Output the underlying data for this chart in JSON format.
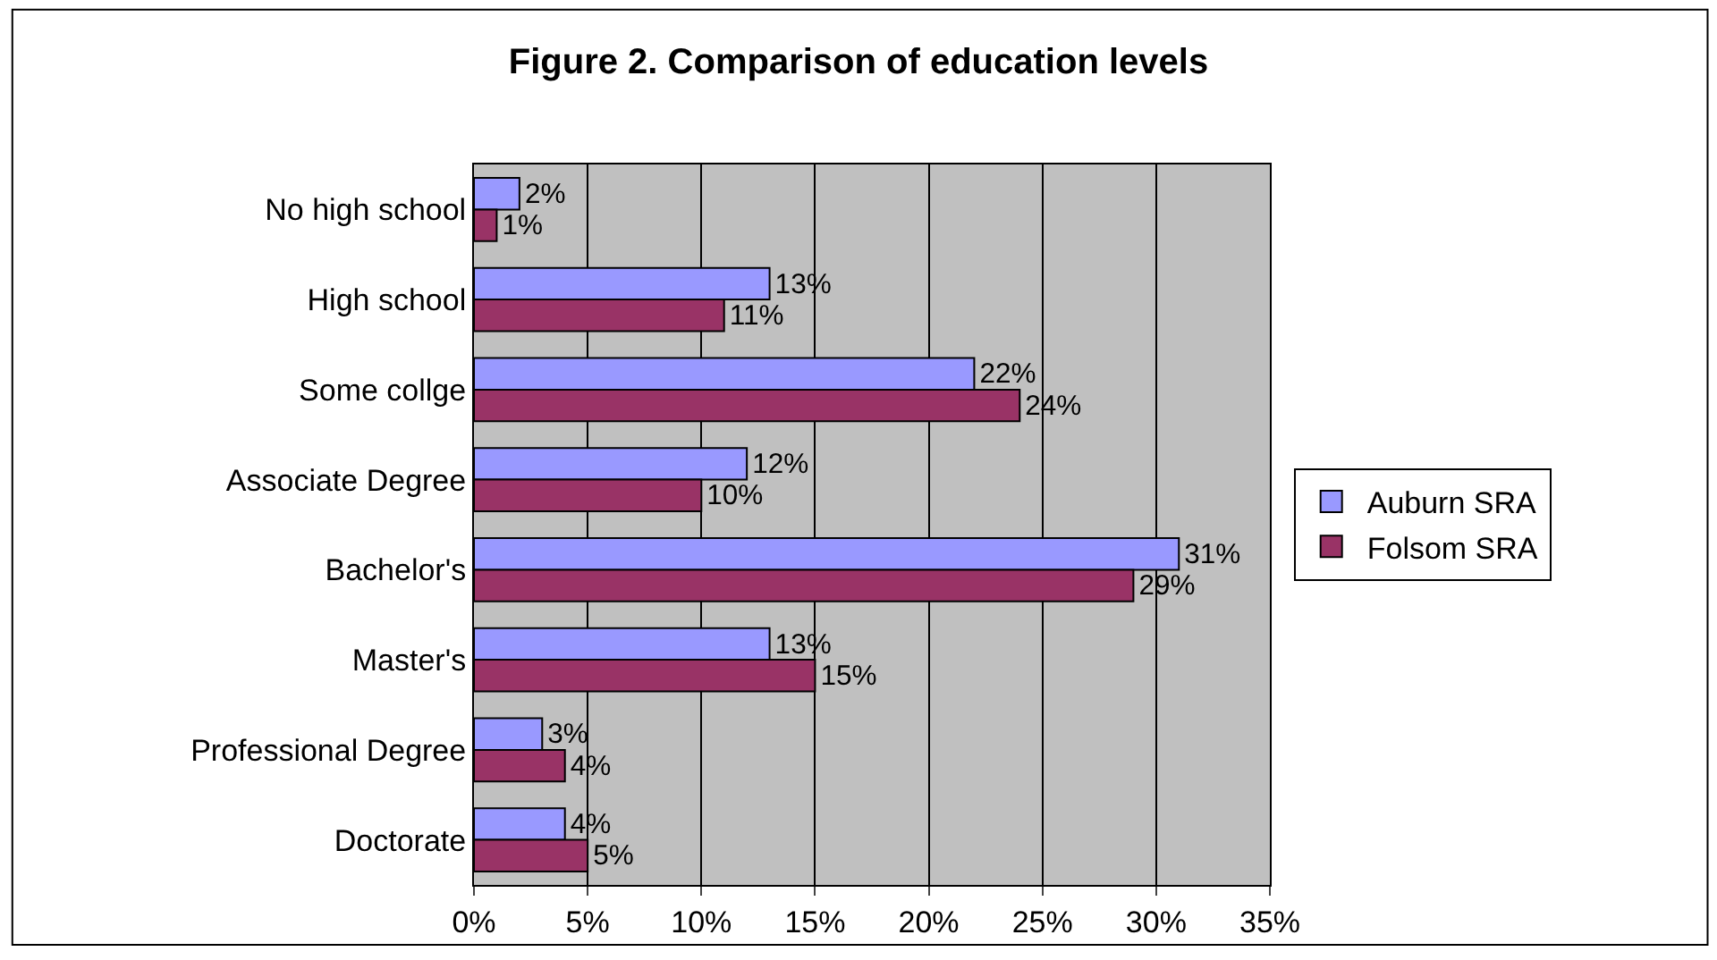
{
  "chart_data": {
    "type": "bar",
    "orientation": "horizontal",
    "title": "Figure 2. Comparison of education levels",
    "categories": [
      "No high school",
      "High school",
      "Some collge",
      "Associate Degree",
      "Bachelor's",
      "Master's",
      "Professional Degree",
      "Doctorate"
    ],
    "series": [
      {
        "name": "Auburn SRA",
        "color": "#9999ff",
        "values": [
          2,
          13,
          22,
          12,
          31,
          13,
          3,
          4
        ],
        "value_labels": [
          "2%",
          "13%",
          "22%",
          "12%",
          "31%",
          "13%",
          "3%",
          "4%"
        ]
      },
      {
        "name": "Folsom SRA",
        "color": "#993366",
        "values": [
          1,
          11,
          24,
          10,
          29,
          15,
          4,
          5
        ],
        "value_labels": [
          "1%",
          "11%",
          "24%",
          "10%",
          "29%",
          "15%",
          "4%",
          "5%"
        ]
      }
    ],
    "xlim": [
      0,
      35
    ],
    "xticks": [
      {
        "value": 0,
        "label": "0%"
      },
      {
        "value": 5,
        "label": "5%"
      },
      {
        "value": 10,
        "label": "10%"
      },
      {
        "value": 15,
        "label": "15%"
      },
      {
        "value": 20,
        "label": "20%"
      },
      {
        "value": 25,
        "label": "25%"
      },
      {
        "value": 30,
        "label": "30%"
      },
      {
        "value": 35,
        "label": "35%"
      }
    ],
    "grid": "x",
    "legend": "right"
  }
}
